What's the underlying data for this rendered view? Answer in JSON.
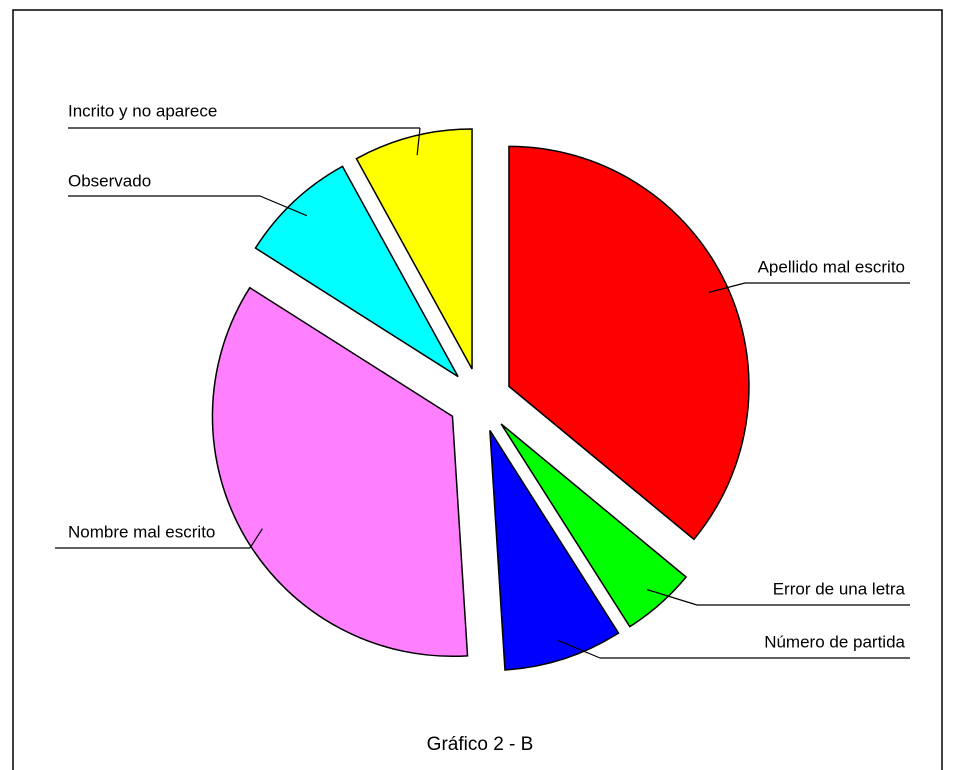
{
  "chart_data": {
    "type": "pie",
    "title": "Gráfico 2 - B",
    "categories": [
      "Apellido mal escrito",
      "Error de una letra",
      "Número de partida",
      "Nombre mal escrito",
      "Observado",
      "Incrito y no aparece"
    ],
    "values": [
      36,
      5,
      8,
      35,
      8,
      8
    ],
    "colors": [
      "#ff0000",
      "#00ff00",
      "#0000ff",
      "#ff80ff",
      "#00ffff",
      "#ffff00"
    ]
  }
}
